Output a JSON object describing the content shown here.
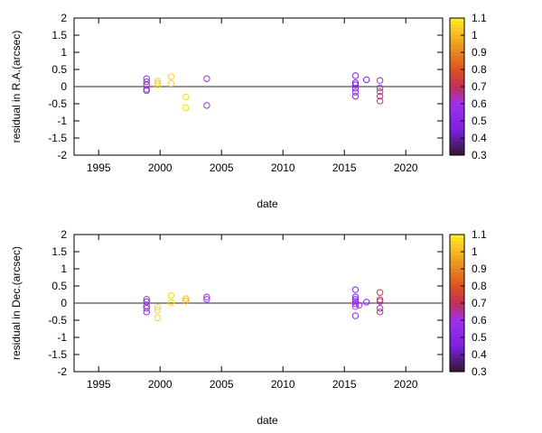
{
  "chart_data": [
    {
      "type": "scatter",
      "xlabel": "date",
      "ylabel": "residual in R.A.(arcsec)",
      "xlim": [
        1993,
        2023
      ],
      "ylim": [
        -2,
        2
      ],
      "xticks": [
        1995,
        2000,
        2005,
        2010,
        2015,
        2020
      ],
      "yticks": [
        -2,
        -1.5,
        -1,
        -0.5,
        0,
        0.5,
        1,
        1.5,
        2
      ],
      "grid": false,
      "zero_line": true,
      "colorbar": {
        "range": [
          0.3,
          1.1
        ],
        "ticks": [
          0.3,
          0.4,
          0.5,
          0.6,
          0.7,
          0.8,
          0.9,
          1,
          1.1
        ]
      },
      "points": [
        [
          1998.9,
          0.23,
          0.55
        ],
        [
          1998.9,
          0.14,
          0.55
        ],
        [
          1998.9,
          0.05,
          0.5
        ],
        [
          1998.9,
          -0.08,
          0.5
        ],
        [
          1998.9,
          -0.12,
          0.55
        ],
        [
          1999.8,
          0.16,
          1.05
        ],
        [
          1999.8,
          0.1,
          1.05
        ],
        [
          1999.8,
          0.05,
          1.05
        ],
        [
          2000.9,
          0.29,
          1.05
        ],
        [
          2000.9,
          0.09,
          1.05
        ],
        [
          2002.1,
          -0.3,
          1.05
        ],
        [
          2002.1,
          -0.62,
          1.05
        ],
        [
          2003.8,
          0.23,
          0.6
        ],
        [
          2003.8,
          -0.55,
          0.6
        ],
        [
          2015.9,
          0.32,
          0.5
        ],
        [
          2015.9,
          0.11,
          0.4
        ],
        [
          2015.9,
          0.05,
          0.45
        ],
        [
          2015.9,
          -0.05,
          0.45
        ],
        [
          2015.9,
          -0.16,
          0.55
        ],
        [
          2015.9,
          -0.28,
          0.5
        ],
        [
          2016.8,
          0.2,
          0.45
        ],
        [
          2017.9,
          0.18,
          0.55
        ],
        [
          2017.9,
          -0.04,
          0.6
        ],
        [
          2017.9,
          -0.15,
          0.72
        ],
        [
          2017.9,
          -0.28,
          0.65
        ],
        [
          2017.9,
          -0.42,
          0.72
        ]
      ]
    },
    {
      "type": "scatter",
      "xlabel": "date",
      "ylabel": "residual in Dec.(arcsec)",
      "xlim": [
        1993,
        2023
      ],
      "ylim": [
        -2,
        2
      ],
      "xticks": [
        1995,
        2000,
        2005,
        2010,
        2015,
        2020
      ],
      "yticks": [
        -2,
        -1.5,
        -1,
        -0.5,
        0,
        0.5,
        1,
        1.5,
        2
      ],
      "grid": false,
      "zero_line": true,
      "colorbar": {
        "range": [
          0.3,
          1.1
        ],
        "ticks": [
          0.3,
          0.4,
          0.5,
          0.6,
          0.7,
          0.8,
          0.9,
          1,
          1.1
        ]
      },
      "points": [
        [
          1998.9,
          0.11,
          0.55
        ],
        [
          1998.9,
          0.04,
          0.55
        ],
        [
          1998.9,
          -0.08,
          0.5
        ],
        [
          1998.9,
          -0.15,
          0.55
        ],
        [
          1998.9,
          -0.26,
          0.55
        ],
        [
          1999.8,
          -0.12,
          1.05
        ],
        [
          1999.8,
          -0.21,
          1.05
        ],
        [
          1999.8,
          -0.43,
          1.05
        ],
        [
          2000.9,
          0.22,
          1.05
        ],
        [
          2000.9,
          0.01,
          1.05
        ],
        [
          2002.1,
          0.13,
          1.0
        ],
        [
          2002.1,
          0.06,
          1.0
        ],
        [
          2003.8,
          0.18,
          0.6
        ],
        [
          2003.8,
          0.11,
          0.6
        ],
        [
          2015.9,
          0.39,
          0.5
        ],
        [
          2015.9,
          0.18,
          0.45
        ],
        [
          2015.9,
          0.11,
          0.45
        ],
        [
          2015.9,
          0.05,
          0.5
        ],
        [
          2015.9,
          -0.02,
          0.55
        ],
        [
          2015.9,
          -0.1,
          0.6
        ],
        [
          2015.9,
          -0.37,
          0.5
        ],
        [
          2016.2,
          -0.06,
          0.6
        ],
        [
          2016.8,
          0.03,
          0.5
        ],
        [
          2017.9,
          0.31,
          0.72
        ],
        [
          2017.9,
          0.1,
          0.7
        ],
        [
          2017.9,
          0.05,
          0.65
        ],
        [
          2017.9,
          -0.15,
          0.55
        ],
        [
          2017.9,
          -0.26,
          0.68
        ]
      ]
    }
  ]
}
